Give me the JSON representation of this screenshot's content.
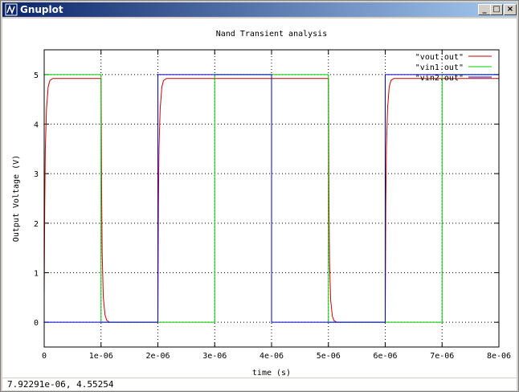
{
  "window": {
    "title": "Gnuplot"
  },
  "titlebar_buttons": {
    "minimize": "_",
    "maximize": "□",
    "close": "×"
  },
  "status": {
    "coords": "7.92291e-06,  4.55254"
  },
  "chart_data": {
    "type": "line",
    "title": "Nand Transient analysis",
    "xlabel": "time (s)",
    "ylabel": "Output Voltage (V)",
    "xlim": [
      0,
      8e-06
    ],
    "ylim": [
      -0.5,
      5.5
    ],
    "grid": true,
    "legend_position": "top-right",
    "x_ticks": [
      {
        "v": 0,
        "label": "0"
      },
      {
        "v": 1e-06,
        "label": "1e-06"
      },
      {
        "v": 2e-06,
        "label": "2e-06"
      },
      {
        "v": 3e-06,
        "label": "3e-06"
      },
      {
        "v": 4e-06,
        "label": "4e-06"
      },
      {
        "v": 5e-06,
        "label": "5e-06"
      },
      {
        "v": 6e-06,
        "label": "6e-06"
      },
      {
        "v": 7e-06,
        "label": "7e-06"
      },
      {
        "v": 8e-06,
        "label": "8e-06"
      }
    ],
    "y_ticks": [
      {
        "v": 0,
        "label": "0"
      },
      {
        "v": 1,
        "label": "1"
      },
      {
        "v": 2,
        "label": "2"
      },
      {
        "v": 3,
        "label": "3"
      },
      {
        "v": 4,
        "label": "4"
      },
      {
        "v": 5,
        "label": "5"
      }
    ],
    "series": [
      {
        "name": "\"vout.out\"",
        "color": "#cc0000",
        "x": [
          0,
          1e-08,
          2e-08,
          4e-08,
          7e-08,
          1e-07,
          1.5e-07,
          1e-06,
          1.005e-06,
          1.01e-06,
          1.02e-06,
          1.04e-06,
          1.07e-06,
          1.1e-06,
          1.15e-06,
          1.2e-06,
          2e-06,
          2.01e-06,
          2.02e-06,
          2.04e-06,
          2.07e-06,
          2.1e-06,
          2.15e-06,
          5e-06,
          5.005e-06,
          5.01e-06,
          5.02e-06,
          5.04e-06,
          5.07e-06,
          5.1e-06,
          5.15e-06,
          5.2e-06,
          6e-06,
          6.01e-06,
          6.02e-06,
          6.04e-06,
          6.07e-06,
          6.1e-06,
          6.15e-06,
          8e-06
        ],
        "y": [
          0.5,
          2.4,
          3.5,
          4.3,
          4.75,
          4.88,
          4.92,
          4.92,
          4.1,
          2.7,
          1.4,
          0.5,
          0.15,
          0.04,
          0.0,
          0.0,
          0.0,
          2.4,
          3.5,
          4.3,
          4.75,
          4.88,
          4.92,
          4.92,
          3.8,
          2.4,
          1.2,
          0.45,
          0.12,
          0.03,
          0.0,
          0.0,
          0.0,
          2.4,
          3.5,
          4.3,
          4.75,
          4.88,
          4.92,
          4.92
        ]
      },
      {
        "name": "\"vin1.out\"",
        "color": "#00cc00",
        "x": [
          0,
          1e-06,
          1e-06,
          3e-06,
          3e-06,
          5e-06,
          5e-06,
          7e-06,
          7e-06,
          8e-06
        ],
        "y": [
          5,
          5,
          0,
          0,
          5,
          5,
          0,
          0,
          5,
          5
        ]
      },
      {
        "name": "\"vin2.out\"",
        "color": "#0000cc",
        "x": [
          0,
          2e-06,
          2e-06,
          4e-06,
          4e-06,
          6e-06,
          6e-06,
          8e-06
        ],
        "y": [
          0,
          0,
          5,
          5,
          0,
          0,
          5,
          5
        ]
      }
    ]
  }
}
